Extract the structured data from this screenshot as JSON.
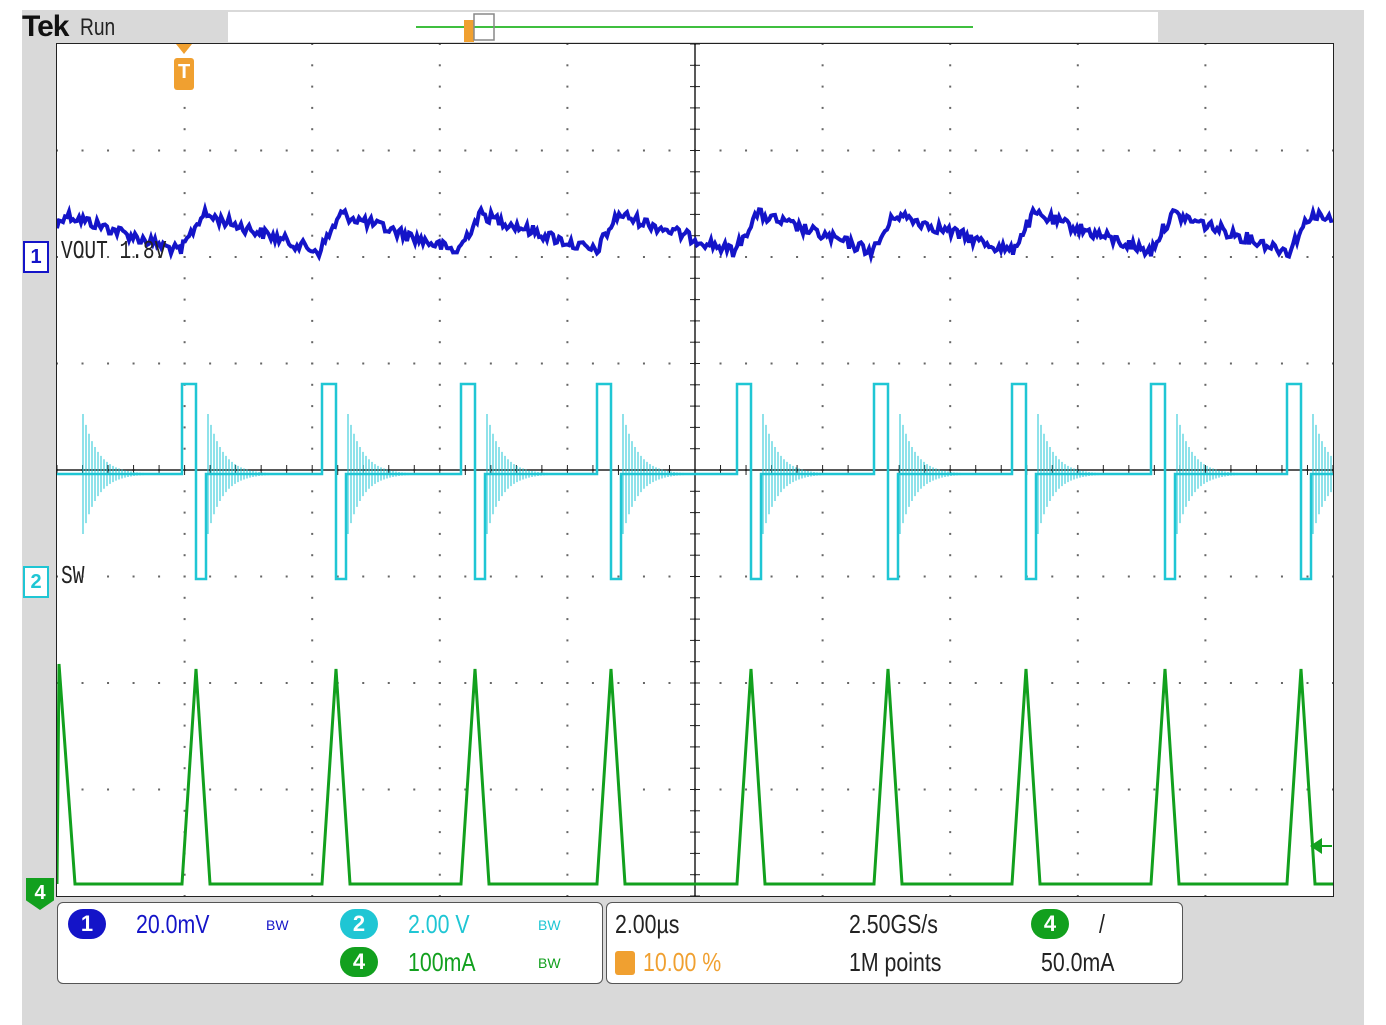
{
  "brand": "Tek",
  "status": "Run",
  "traces": {
    "ch1_label": "VOUT 1.8V",
    "ch2_label": "SW"
  },
  "markers": {
    "ch1": "1",
    "ch2": "2",
    "ch4": "4",
    "trigger": "T"
  },
  "readouts": {
    "ch1_num": "1",
    "ch1_scale": "20.0mV",
    "ch2_num": "2",
    "ch2_scale": "2.00 V",
    "ch4_num": "4",
    "ch4_scale": "100mA",
    "bw_label": "BW",
    "timebase": "2.00µs",
    "trigger_pos": "10.00 %",
    "sample_rate": "2.50GS/s",
    "record_length": "1M points",
    "trig_source": "4",
    "trig_slope": "/",
    "trig_level": "50.0mA"
  },
  "colors": {
    "ch1": "#1414c8",
    "ch2": "#1fc6d4",
    "ch4": "#12a01e",
    "trigger": "#f0a030"
  }
}
